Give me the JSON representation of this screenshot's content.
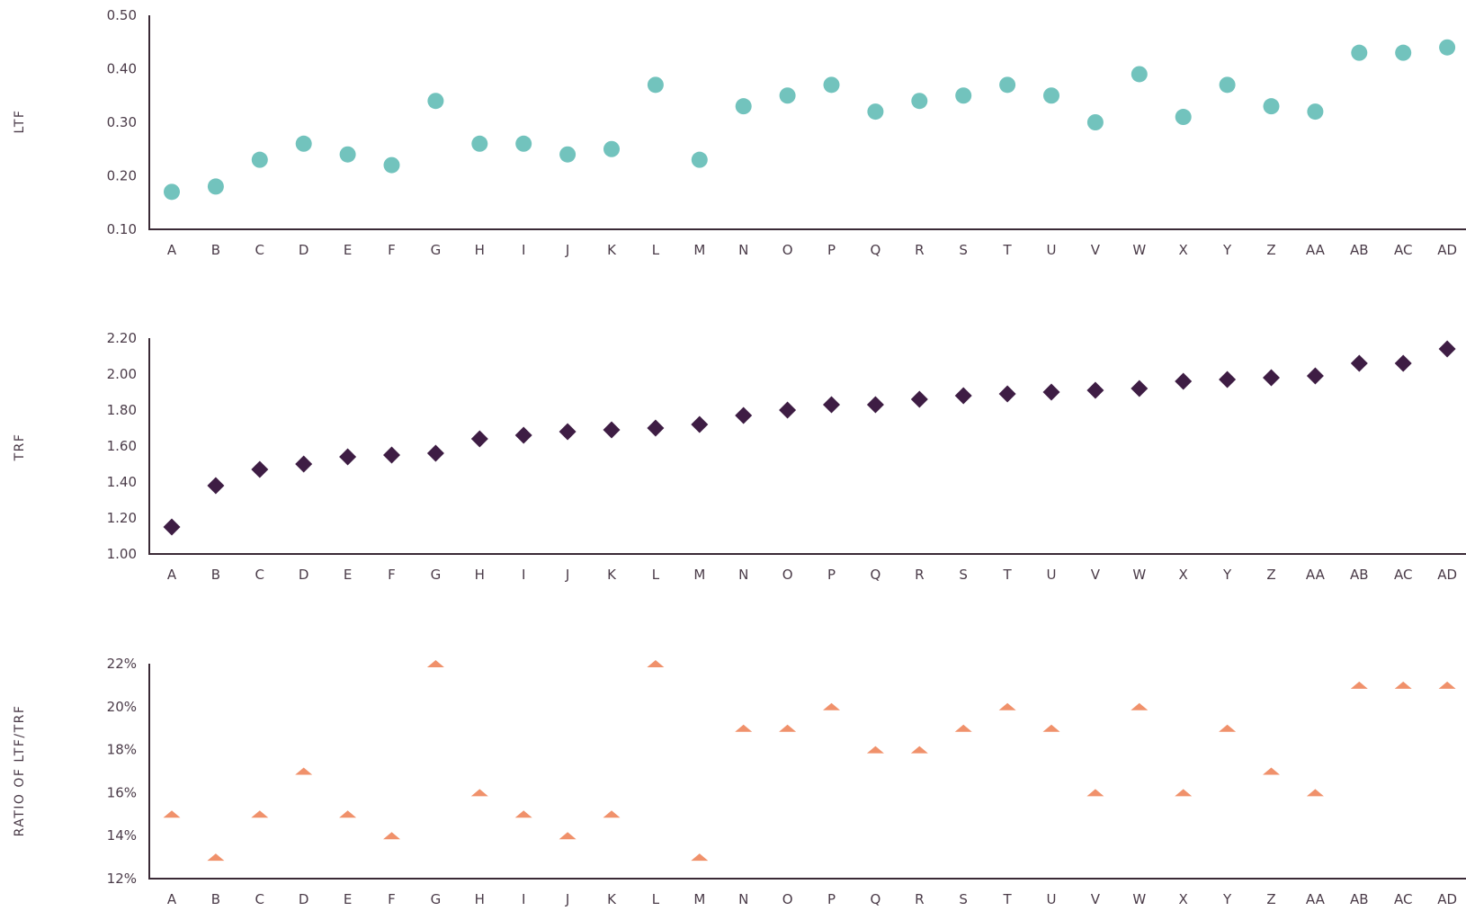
{
  "chart_data": [
    {
      "type": "scatter",
      "ylabel": "LTF",
      "marker": "circle",
      "color": "#72c3bd",
      "ylim": [
        0.1,
        0.5
      ],
      "yticks": [
        "0.50",
        "0.40",
        "0.30",
        "0.20",
        "0.10"
      ],
      "categories": [
        "A",
        "B",
        "C",
        "D",
        "E",
        "F",
        "G",
        "H",
        "I",
        "J",
        "K",
        "L",
        "M",
        "N",
        "O",
        "P",
        "Q",
        "R",
        "S",
        "T",
        "U",
        "V",
        "W",
        "X",
        "Y",
        "Z",
        "AA",
        "AB",
        "AC",
        "AD"
      ],
      "values": [
        0.17,
        0.18,
        0.23,
        0.26,
        0.24,
        0.22,
        0.34,
        0.26,
        0.26,
        0.24,
        0.25,
        0.37,
        0.23,
        0.33,
        0.35,
        0.37,
        0.32,
        0.34,
        0.35,
        0.37,
        0.35,
        0.3,
        0.39,
        0.31,
        0.37,
        0.33,
        0.32,
        0.43,
        0.43,
        0.44
      ]
    },
    {
      "type": "scatter",
      "ylabel": "TRF",
      "marker": "diamond",
      "color": "#3e1d44",
      "ylim": [
        1.0,
        2.2
      ],
      "yticks": [
        "2.20",
        "2.00",
        "1.80",
        "1.60",
        "1.40",
        "1.20",
        "1.00"
      ],
      "categories": [
        "A",
        "B",
        "C",
        "D",
        "E",
        "F",
        "G",
        "H",
        "I",
        "J",
        "K",
        "L",
        "M",
        "N",
        "O",
        "P",
        "Q",
        "R",
        "S",
        "T",
        "U",
        "V",
        "W",
        "X",
        "Y",
        "Z",
        "AA",
        "AB",
        "AC",
        "AD"
      ],
      "values": [
        1.15,
        1.38,
        1.47,
        1.5,
        1.54,
        1.55,
        1.56,
        1.64,
        1.66,
        1.68,
        1.69,
        1.7,
        1.72,
        1.77,
        1.8,
        1.83,
        1.83,
        1.86,
        1.88,
        1.89,
        1.9,
        1.91,
        1.92,
        1.96,
        1.97,
        1.98,
        1.99,
        2.06,
        2.06,
        2.14
      ]
    },
    {
      "type": "scatter",
      "ylabel": "RATIO OF LTF/TRF",
      "marker": "triangle",
      "color": "#f0916b",
      "ylim": [
        12,
        22
      ],
      "yunit": "%",
      "yticks": [
        "22%",
        "20%",
        "18%",
        "16%",
        "14%",
        "12%"
      ],
      "categories": [
        "A",
        "B",
        "C",
        "D",
        "E",
        "F",
        "G",
        "H",
        "I",
        "J",
        "K",
        "L",
        "M",
        "N",
        "O",
        "P",
        "Q",
        "R",
        "S",
        "T",
        "U",
        "V",
        "W",
        "X",
        "Y",
        "Z",
        "AA",
        "AB",
        "AC",
        "AD"
      ],
      "values": [
        15,
        13,
        15,
        17,
        15,
        14,
        22,
        16,
        15,
        14,
        15,
        22,
        13,
        19,
        19,
        20,
        18,
        18,
        19,
        20,
        19,
        16,
        20,
        16,
        19,
        17,
        16,
        21,
        21,
        21
      ]
    }
  ]
}
